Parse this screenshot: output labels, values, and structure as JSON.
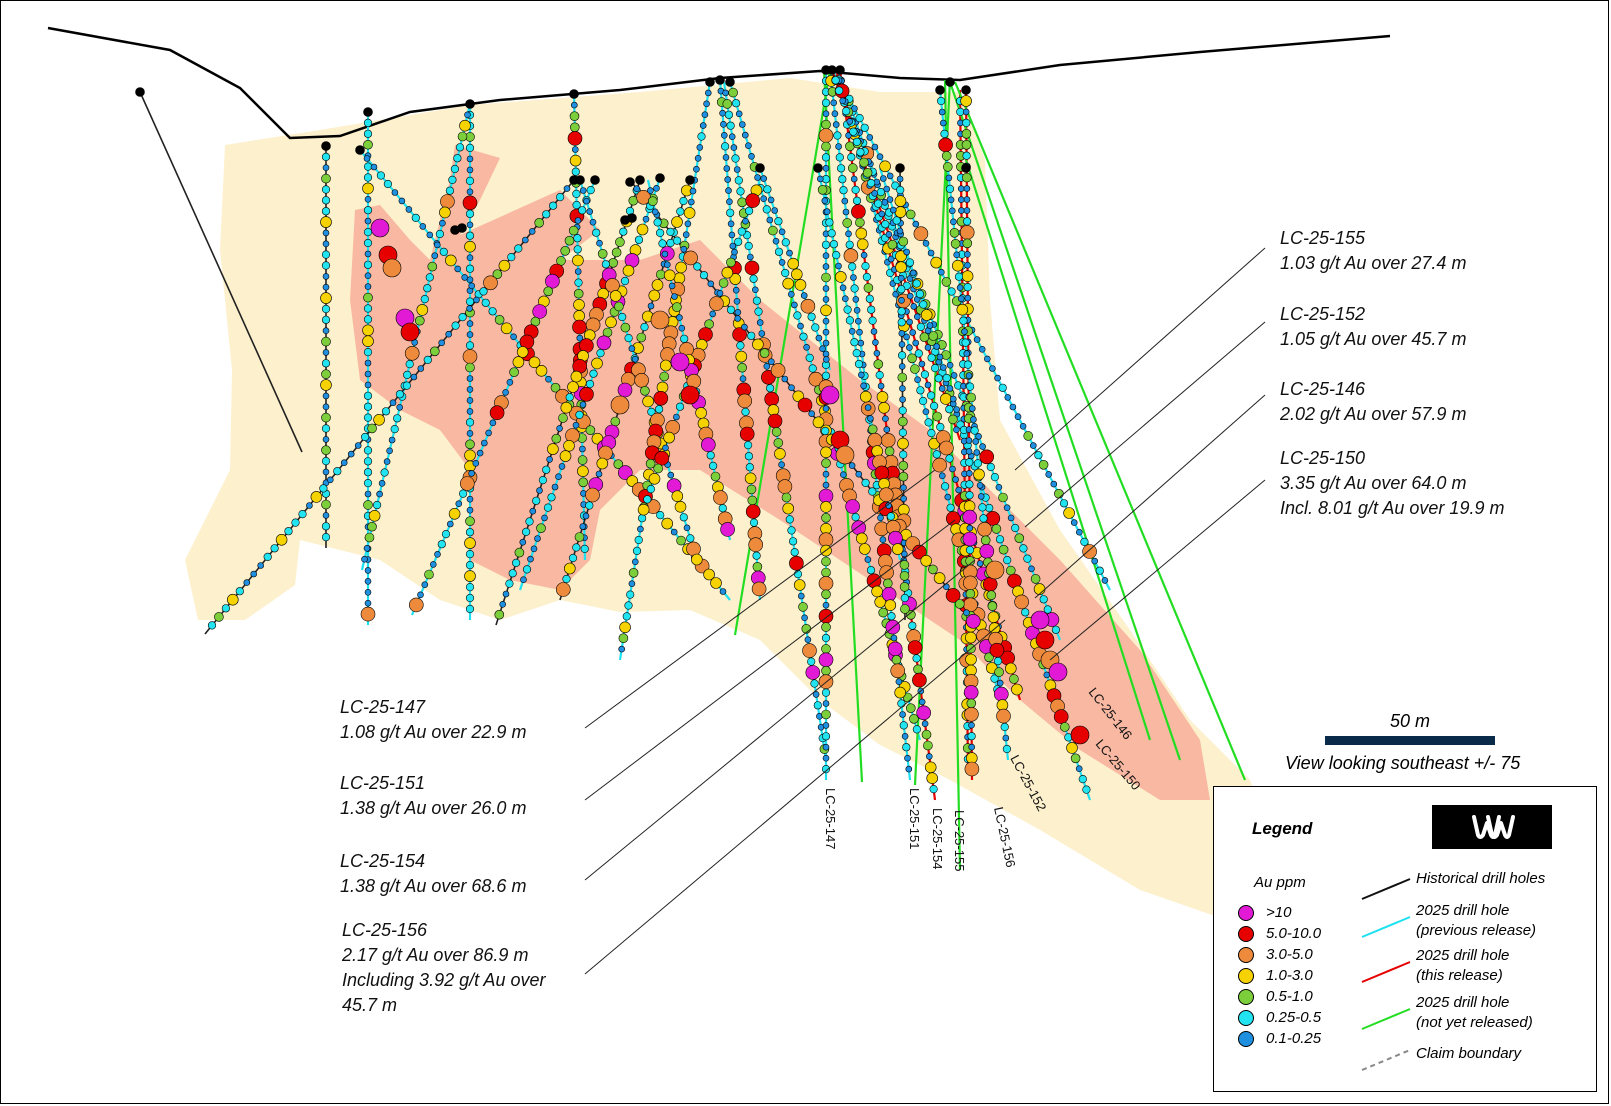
{
  "callouts_right": [
    {
      "hole": "LC-25-155",
      "lines": [
        "1.03 g/t Au over 27.4 m"
      ]
    },
    {
      "hole": "LC-25-152",
      "lines": [
        "1.05 g/t Au over 45.7 m"
      ]
    },
    {
      "hole": "LC-25-146",
      "lines": [
        "2.02 g/t Au over 57.9 m"
      ]
    },
    {
      "hole": "LC-25-150",
      "lines": [
        "3.35 g/t Au over 64.0 m",
        "Incl. 8.01 g/t Au over 19.9 m"
      ]
    }
  ],
  "callouts_left": [
    {
      "hole": "LC-25-147",
      "lines": [
        "1.08 g/t Au over 22.9 m"
      ]
    },
    {
      "hole": "LC-25-151",
      "lines": [
        "1.38 g/t Au over 26.0 m"
      ]
    },
    {
      "hole": "LC-25-154",
      "lines": [
        "1.38 g/t Au over 68.6 m"
      ]
    },
    {
      "hole": "LC-25-156",
      "lines": [
        "2.17 g/t Au over 86.9 m",
        "Including 3.92 g/t Au over",
        "45.7 m"
      ]
    }
  ],
  "hole_labels": [
    "LC-25-147",
    "LC-25-151",
    "LC-25-154",
    "LC-25-155",
    "LC-25-156",
    "LC-25-152",
    "LC-25-146",
    "LC-25-150"
  ],
  "scale": {
    "label": "50 m"
  },
  "view_text": "View looking southeast +/- 75",
  "legend": {
    "title": "Legend",
    "au_title": "Au ppm",
    "grades": [
      {
        "label": ">10",
        "color": "#e21ad6"
      },
      {
        "label": "5.0-10.0",
        "color": "#e60000"
      },
      {
        "label": "3.0-5.0",
        "color": "#ee8a3c"
      },
      {
        "label": "1.0-3.0",
        "color": "#f5d200"
      },
      {
        "label": "0.5-1.0",
        "color": "#7ccf3a"
      },
      {
        "label": "0.25-0.5",
        "color": "#22e3f0"
      },
      {
        "label": "0.1-0.25",
        "color": "#1f8fe0"
      }
    ],
    "symbols": [
      {
        "label_lines": [
          "Historical  drill holes"
        ],
        "color": "#111111",
        "style": "solid"
      },
      {
        "label_lines": [
          "2025 drill hole",
          "(previous release)"
        ],
        "color": "#1de0f0",
        "style": "solid"
      },
      {
        "label_lines": [
          "2025 drill hole",
          "(this release)"
        ],
        "color": "#e60000",
        "style": "solid"
      },
      {
        "label_lines": [
          "2025 drill hole",
          "(not yet released)"
        ],
        "color": "#22dd22",
        "style": "solid"
      },
      {
        "label_lines": [
          "Claim boundary"
        ],
        "color": "#888888",
        "style": "dashed"
      }
    ]
  },
  "colors": {
    "halo": "#fdf0cc",
    "zone": "#f8b8a2",
    "topography": "#000000"
  }
}
